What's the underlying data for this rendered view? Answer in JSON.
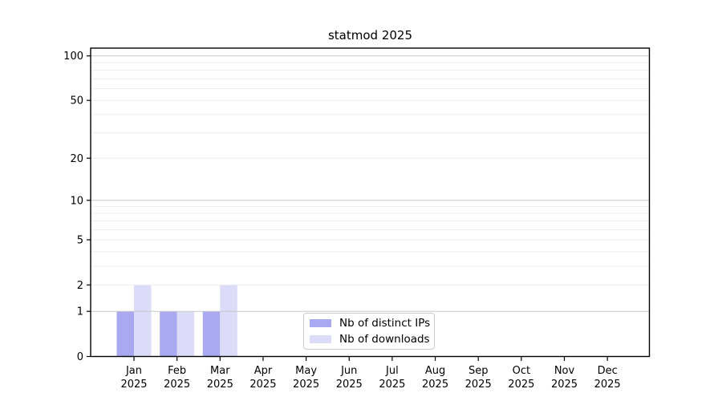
{
  "chart_data": {
    "type": "bar",
    "title": "statmod 2025",
    "year": "2025",
    "categories": [
      "Jan",
      "Feb",
      "Mar",
      "Apr",
      "May",
      "Jun",
      "Jul",
      "Aug",
      "Sep",
      "Oct",
      "Nov",
      "Dec"
    ],
    "series": [
      {
        "name": "Nb of distinct IPs",
        "color": "#a9a9f1",
        "values": [
          1,
          1,
          1,
          0,
          0,
          0,
          0,
          0,
          0,
          0,
          0,
          0
        ]
      },
      {
        "name": "Nb of downloads",
        "color": "#dcdbf8",
        "values": [
          2,
          1,
          2,
          0,
          0,
          0,
          0,
          0,
          0,
          0,
          0,
          0
        ]
      }
    ],
    "yscale": "log1p",
    "ylim": [
      0,
      100
    ],
    "yticks": [
      0,
      1,
      2,
      5,
      10,
      20,
      50,
      100
    ],
    "grid": {
      "minor_values": [
        2,
        3,
        4,
        5,
        6,
        7,
        8,
        9,
        20,
        30,
        40,
        50,
        60,
        70,
        80,
        90
      ],
      "major_values": [
        1,
        10,
        100
      ],
      "minor_color": "#ededed",
      "major_color": "#c9c9c9"
    },
    "legend_position": "lower center",
    "axis_color": "#000000"
  }
}
